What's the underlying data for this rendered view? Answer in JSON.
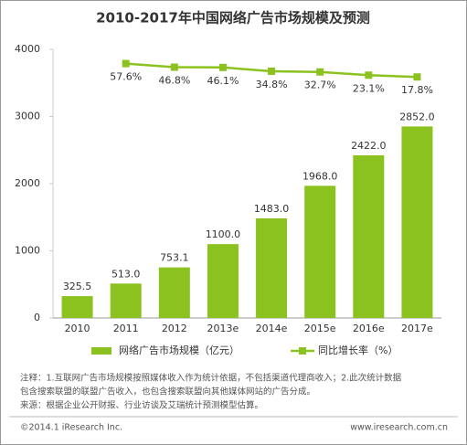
{
  "chart_data": {
    "type": "bar",
    "title": "2010-2017年中国网络广告市场规模及预测",
    "categories": [
      "2010",
      "2011",
      "2012",
      "2013e",
      "2014e",
      "2015e",
      "2016e",
      "2017e"
    ],
    "series": [
      {
        "name": "网络广告市场规模（亿元）",
        "type": "bar",
        "color": "#8cc21f",
        "values": [
          325.5,
          513,
          753.1,
          1100,
          1483,
          1968,
          2422,
          2852
        ],
        "value_labels": [
          "325.5",
          "513.0",
          "753.1",
          "1100.0",
          "1483.0",
          "1968.0",
          "2422.0",
          "2852.0"
        ]
      },
      {
        "name": "同比增长率（%）",
        "type": "line",
        "axis": "y2",
        "color": "#8cc21f",
        "values": [
          null,
          57.6,
          46.8,
          46.1,
          34.8,
          32.7,
          23.1,
          17.8
        ],
        "value_labels": [
          null,
          "57.6%",
          "46.8%",
          "46.1%",
          "34.8%",
          "32.7%",
          "23.1%",
          "17.8%"
        ]
      }
    ],
    "ylim": [
      0,
      4000
    ],
    "yticks": [
      0,
      1000,
      2000,
      3000,
      4000
    ],
    "y2lim": [
      -700,
      100
    ],
    "grid": false
  },
  "notes": [
    "注释：1.互联网广告市场规模按照媒体收入作为统计依据，不包括渠道代理商收入；2.此次统计数据",
    "包含搜索联盟的联盟广告收入，也包含搜索联盟向其他媒体网站的广告分成。",
    "来源：根据企业公开财报、行业访谈及艾瑞统计预测模型估算。"
  ],
  "copyright": "©2014.1 iResearch Inc.",
  "website": "www.iresearch.com.cn"
}
